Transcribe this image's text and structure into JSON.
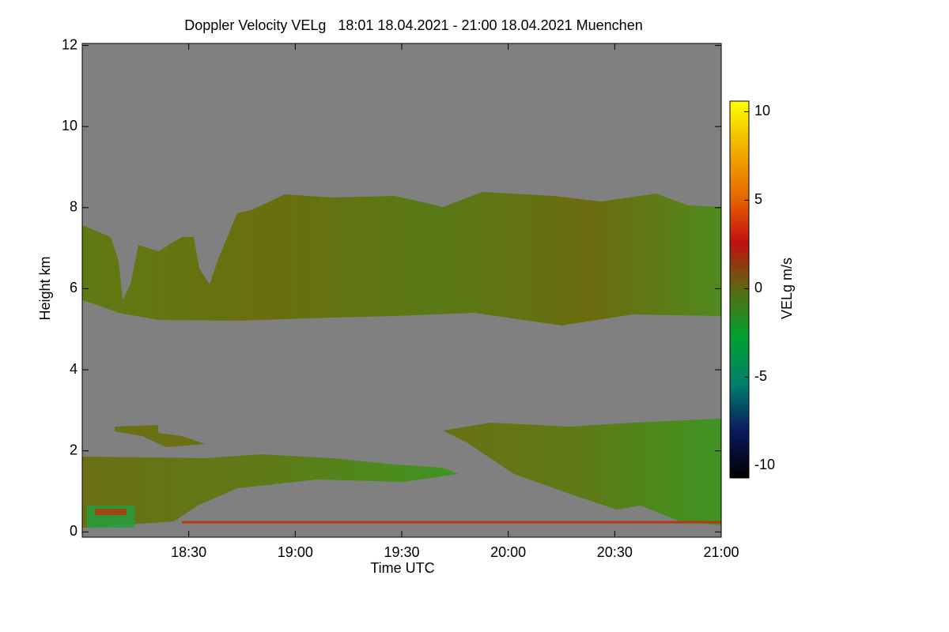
{
  "chart_data": {
    "type": "heatmap",
    "title": "Doppler Velocity VELg   18:01 18.04.2021 - 21:00 18.04.2021 Muenchen",
    "x_label": "Time UTC",
    "y_label": "Height km",
    "xlim": [
      1080,
      1260
    ],
    "xticks": [
      {
        "value": 1110,
        "label": "18:30"
      },
      {
        "value": 1140,
        "label": "19:00"
      },
      {
        "value": 1170,
        "label": "19:30"
      },
      {
        "value": 1200,
        "label": "20:00"
      },
      {
        "value": 1230,
        "label": "20:30"
      },
      {
        "value": 1260,
        "label": "21:00"
      }
    ],
    "ylim": [
      -0.13,
      12.05
    ],
    "yticks": [
      0,
      2,
      4,
      6,
      8,
      10,
      12
    ],
    "colorbar": {
      "label": "VELg m/s",
      "lim": [
        -10.7,
        10.6
      ],
      "ticks": [
        -10,
        -5,
        0,
        5,
        10
      ],
      "colors": [
        "#000000",
        "#0a1a60",
        "#00806a",
        "#00a030",
        "#5a6a10",
        "#c01010",
        "#e86a00",
        "#f0b000",
        "#ffff00"
      ]
    }
  }
}
